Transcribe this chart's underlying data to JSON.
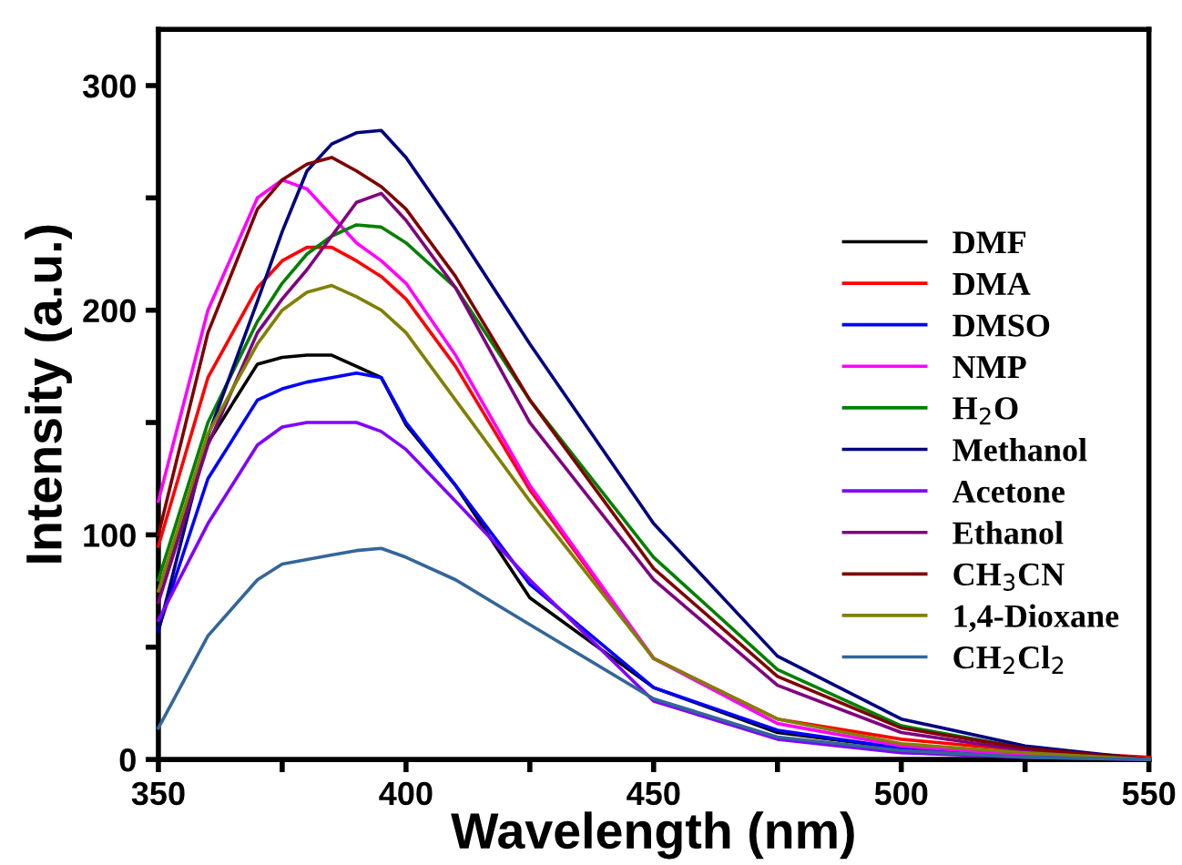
{
  "chart_data": {
    "type": "line",
    "xlabel": "Wavelength (nm)",
    "ylabel": "Intensity (a.u.)",
    "x": [
      350,
      360,
      370,
      375,
      380,
      385,
      390,
      395,
      400,
      410,
      425,
      450,
      475,
      500,
      525,
      550
    ],
    "xlim": [
      350,
      550
    ],
    "xticks": [
      350,
      {
        "value": 375,
        "label": null
      },
      400,
      {
        "value": 425,
        "label": null
      },
      450,
      {
        "value": 475,
        "label": null
      },
      500,
      {
        "value": 525,
        "label": null
      },
      550
    ],
    "ylim": [
      0,
      325
    ],
    "yticks": [
      0,
      {
        "value": 50,
        "label": null
      },
      100,
      {
        "value": 150,
        "label": null
      },
      200,
      {
        "value": 250,
        "label": null
      },
      300
    ],
    "grid": false,
    "legend": "right",
    "marker": "none",
    "line_style": "solid",
    "series": [
      {
        "name": "DMF",
        "color": "#000000",
        "values": [
          75,
          141,
          176,
          179,
          180,
          180,
          175,
          170,
          149,
          122,
          72,
          32,
          12,
          5,
          2,
          0
        ]
      },
      {
        "name": "DMA",
        "color": "#ff0000",
        "values": [
          95,
          170,
          210,
          222,
          228,
          228,
          222,
          215,
          205,
          175,
          120,
          45,
          18,
          9,
          4,
          1
        ]
      },
      {
        "name": "DMSO",
        "color": "#0000ff",
        "values": [
          58,
          125,
          160,
          165,
          168,
          170,
          172,
          170,
          150,
          122,
          78,
          32,
          13,
          5,
          2,
          0
        ]
      },
      {
        "name": "NMP",
        "color": "#ff00ff",
        "values": [
          115,
          200,
          250,
          258,
          254,
          242,
          230,
          222,
          212,
          180,
          122,
          45,
          16,
          6,
          2,
          0
        ]
      },
      {
        "name": "H$_{2}$O",
        "color": "#008000",
        "values": [
          80,
          150,
          195,
          212,
          225,
          233,
          238,
          237,
          230,
          210,
          160,
          90,
          40,
          15,
          5,
          0
        ]
      },
      {
        "name": "Methanol",
        "color": "#000080",
        "values": [
          57,
          144,
          204,
          235,
          262,
          274,
          279,
          280,
          268,
          236,
          185,
          105,
          46,
          18,
          6,
          0
        ]
      },
      {
        "name": "Acetone",
        "color": "#8000ff",
        "values": [
          62,
          105,
          140,
          148,
          150,
          150,
          150,
          146,
          138,
          115,
          80,
          26,
          9,
          3,
          1,
          0
        ]
      },
      {
        "name": "Ethanol",
        "color": "#800080",
        "values": [
          70,
          140,
          190,
          205,
          218,
          233,
          248,
          252,
          240,
          210,
          150,
          80,
          33,
          12,
          4,
          0
        ]
      },
      {
        "name": "CH$_{3}$CN",
        "color": "#800000",
        "values": [
          100,
          190,
          245,
          258,
          265,
          268,
          262,
          255,
          245,
          215,
          160,
          85,
          37,
          14,
          5,
          0
        ]
      },
      {
        "name": "1,4-Dioxane",
        "color": "#808000",
        "values": [
          75,
          145,
          185,
          200,
          208,
          211,
          206,
          200,
          190,
          160,
          115,
          45,
          18,
          7,
          3,
          0
        ]
      },
      {
        "name": "CH$_{2}$Cl$_{2}$",
        "color": "#336699",
        "values": [
          14,
          55,
          80,
          87,
          89,
          91,
          93,
          94,
          90,
          80,
          60,
          27,
          10,
          4,
          1,
          0
        ]
      }
    ]
  }
}
